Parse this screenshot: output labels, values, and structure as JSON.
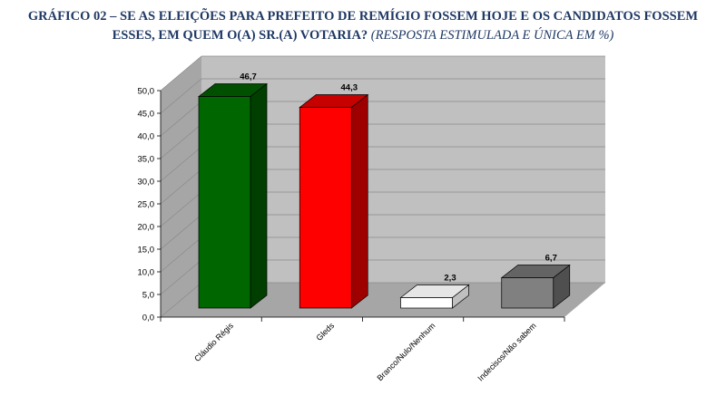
{
  "header": {
    "line1": "GRÁFICO 02 – SE AS ELEIÇÕES PARA PREFEITO DE REMÍGIO FOSSEM HOJE E OS CANDIDATOS FOSSEM",
    "line2_main": "ESSES, EM QUEM O(A) SR.(A) VOTARIA?",
    "line2_sub": "(RESPOSTA ESTIMULADA E ÚNICA EM %)"
  },
  "chart_data": {
    "type": "bar",
    "categories": [
      "Cláudio Régis",
      "Gleds",
      "Branco/Nulo/Nenhum",
      "Indecisos/Não sabem"
    ],
    "values": [
      46.7,
      44.3,
      2.3,
      6.7
    ],
    "value_labels": [
      "46,7",
      "44,3",
      "2,3",
      "6,7"
    ],
    "colors": [
      "#006600",
      "#ff0000",
      "#ffffff",
      "#808080"
    ],
    "ylim": [
      0,
      50
    ],
    "yticks": [
      "0,0",
      "5,0",
      "10,0",
      "15,0",
      "20,0",
      "25,0",
      "30,0",
      "35,0",
      "40,0",
      "45,0",
      "50,0"
    ],
    "grid": true,
    "style": "3d-column"
  }
}
